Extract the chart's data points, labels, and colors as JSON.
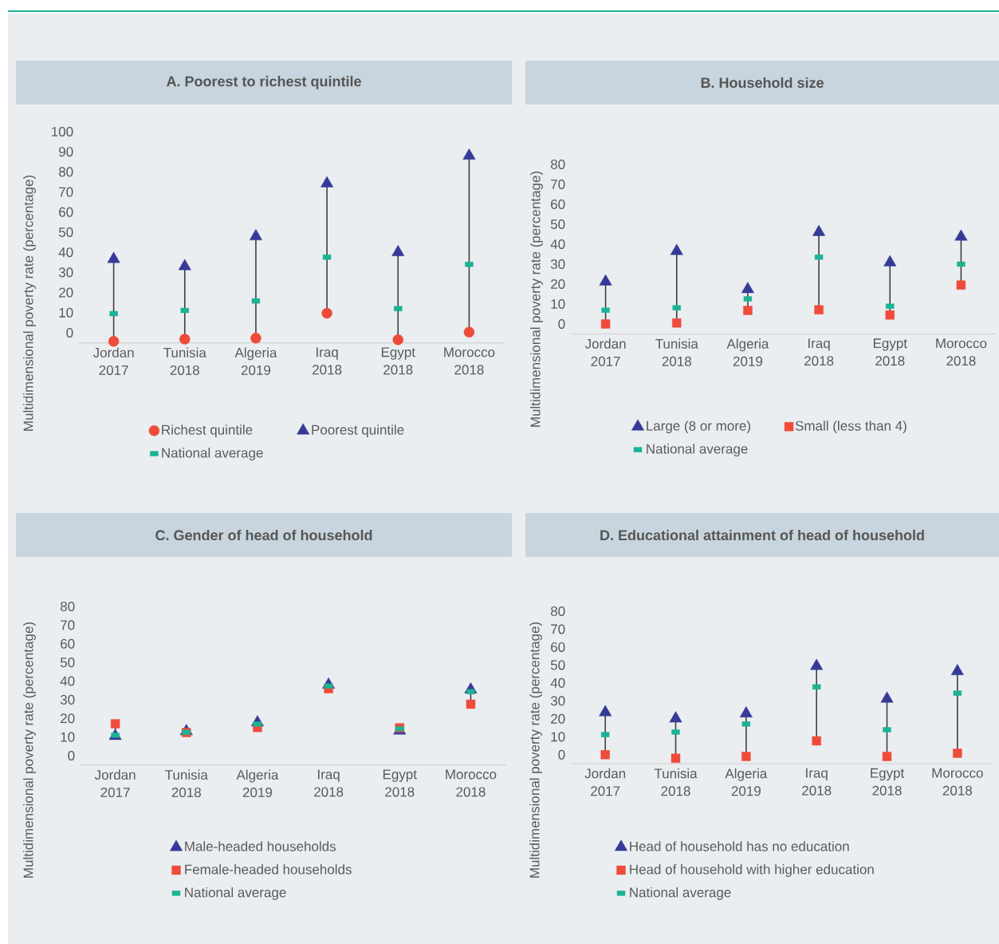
{
  "chart_data": [
    {
      "type": "scatter",
      "title": "A. Poorest to richest quintile",
      "ylabel": "Multidimensional poverty rate (percentage)",
      "categories": [
        "Jordan 2017",
        "Tunisia 2018",
        "Algeria 2019",
        "Iraq 2018",
        "Egypt 2018",
        "Morocco 2018"
      ],
      "ylim": [
        -5,
        100
      ],
      "yticks": [
        0,
        10,
        20,
        30,
        40,
        50,
        60,
        70,
        80,
        90,
        100
      ],
      "legend": "bottom",
      "series": [
        {
          "name": "Richest quintile",
          "color": "#ef4b3a",
          "marker": "circle",
          "values": [
            -4.3,
            -3.2,
            -2.7,
            9.7,
            -3.5,
            0.3
          ]
        },
        {
          "name": "Poorest quintile",
          "color": "#363a97",
          "marker": "triangle",
          "values": [
            36.6,
            33,
            47.9,
            74.2,
            40,
            88
          ]
        },
        {
          "name": "National average",
          "color": "#1ab394",
          "marker": "square",
          "values": [
            9.5,
            11.1,
            15.8,
            37.6,
            12,
            34
          ]
        }
      ]
    },
    {
      "type": "scatter",
      "title": "B. Household size",
      "ylabel": "Multidimensional poverty rate (percentage)",
      "categories": [
        "Jordan 2017",
        "Tunisia 2018",
        "Algeria 2019",
        "Iraq 2018",
        "Egypt 2018",
        "Morocco 2018"
      ],
      "ylim": [
        -5,
        80
      ],
      "yticks": [
        0,
        10,
        20,
        30,
        40,
        50,
        60,
        70,
        80
      ],
      "legend": "bottom",
      "series": [
        {
          "name": "Large (8 or more)",
          "color": "#363a97",
          "marker": "triangle",
          "values": [
            21.2,
            36.5,
            17.4,
            46,
            30.8,
            43.7
          ]
        },
        {
          "name": "Small (less than 4)",
          "color": "#ef4b3a",
          "marker": "square",
          "values": [
            0,
            0.5,
            6.8,
            7.1,
            4.5,
            19.5
          ]
        },
        {
          "name": "National average",
          "color": "#1ab394",
          "marker": "square",
          "values": [
            6.9,
            8.1,
            12.6,
            33.5,
            8.9,
            30
          ]
        }
      ]
    },
    {
      "type": "scatter",
      "title": "C. Gender of head of household",
      "ylabel": "Multidimensional poverty rate (percentage)",
      "categories": [
        "Jordan 2017",
        "Tunisia 2018",
        "Algeria 2019",
        "Iraq 2018",
        "Egypt 2018",
        "Morocco 2018"
      ],
      "ylim": [
        -5,
        80
      ],
      "yticks": [
        0,
        10,
        20,
        30,
        40,
        50,
        60,
        70,
        80
      ],
      "legend": "bottom",
      "series": [
        {
          "name": "Male-headed households",
          "color": "#363a97",
          "marker": "triangle",
          "values": [
            10.5,
            13,
            17.8,
            38,
            13.4,
            35.4
          ]
        },
        {
          "name": "Female-headed households",
          "color": "#ef4b3a",
          "marker": "square",
          "values": [
            17.1,
            12.4,
            15.1,
            35.9,
            14.9,
            27.6
          ]
        },
        {
          "name": "National average",
          "color": "#1ab394",
          "marker": "square",
          "values": [
            11,
            12.5,
            16.9,
            37.4,
            14.4,
            34.3
          ]
        }
      ]
    },
    {
      "type": "scatter",
      "title": "D. Educational attainment of head of household",
      "ylabel": "Multidimensional poverty rate (percentage)",
      "categories": [
        "Jordan 2017",
        "Tunisia 2018",
        "Algeria 2019",
        "Iraq 2018",
        "Egypt 2018",
        "Morocco 2018"
      ],
      "ylim": [
        -5,
        80
      ],
      "yticks": [
        0,
        10,
        20,
        30,
        40,
        50,
        60,
        70,
        80
      ],
      "legend": "bottom",
      "series": [
        {
          "name": "Head of household has no education",
          "color": "#363a97",
          "marker": "triangle",
          "values": [
            23.6,
            20.1,
            22.9,
            49.4,
            31.1,
            46.5
          ]
        },
        {
          "name": "Head of household with higher education",
          "color": "#ef4b3a",
          "marker": "square",
          "values": [
            0,
            -2,
            -1,
            7.7,
            -1,
            0.8
          ]
        },
        {
          "name": "National average",
          "color": "#1ab394",
          "marker": "square",
          "values": [
            11.2,
            12.6,
            17.1,
            37.8,
            13.9,
            34.3
          ]
        }
      ]
    }
  ]
}
